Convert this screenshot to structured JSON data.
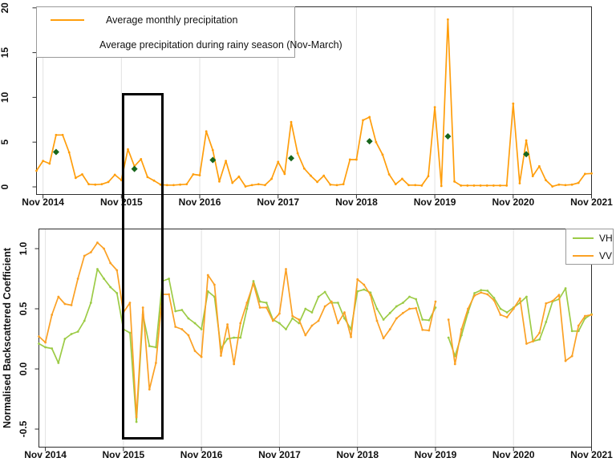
{
  "figure": {
    "description": "Two stacked time-series plots sharing a Nov 2014 - Nov 2021 monthly x-axis with a black rectangle highlighting the Nov 2015 - Apr 2016 window in both plots",
    "colors": {
      "precipitation_line": "#FF9E0C",
      "rainy_season_marker": "#17661C",
      "vh_line": "#9CCB46",
      "vv_line": "#FBA125",
      "gridline": "#E2E2E2",
      "box_border": "#2F2F2F",
      "highlight_box": "#000000",
      "text": "#111111"
    }
  },
  "top_legend": {
    "item1": "Average monthly precipitation",
    "item2": "Average precipitation during rainy season (Nov-March)"
  },
  "bottom_legend": {
    "item1": "VH",
    "item2": "VV"
  },
  "chart_data": [
    {
      "type": "line",
      "title": "",
      "xlabel": "",
      "ylabel": "",
      "x_start": "Oct 2014",
      "x_interval": "monthly",
      "x_tick_labels": [
        "Nov 2014",
        "Nov 2015",
        "Nov 2016",
        "Nov 2017",
        "Nov 2018",
        "Nov 2019",
        "Nov 2020",
        "Nov 2021"
      ],
      "x_tick_month_indices": [
        1,
        13,
        25,
        37,
        49,
        61,
        73,
        85
      ],
      "ylim": [
        0,
        20.8
      ],
      "y_ticks": [
        0,
        5,
        10,
        15,
        20
      ],
      "grid": "vertical-only",
      "legend_position": "top-left",
      "series": [
        {
          "name": "Average monthly precipitation",
          "color": "#FF9E0C",
          "values": [
            1.8,
            2.9,
            2.6,
            5.8,
            5.8,
            3.85,
            1.0,
            1.4,
            0.3,
            0.25,
            0.3,
            0.55,
            1.35,
            0.75,
            4.2,
            2.3,
            3.1,
            1.1,
            0.7,
            0.25,
            0.2,
            0.2,
            0.25,
            0.3,
            1.4,
            1.3,
            6.2,
            4.1,
            0.6,
            2.9,
            0.45,
            1.15,
            0.05,
            0.2,
            0.3,
            0.2,
            0.9,
            2.8,
            1.45,
            7.25,
            3.75,
            2.05,
            1.25,
            0.55,
            1.25,
            0.25,
            0.2,
            0.3,
            3.05,
            3.05,
            7.45,
            7.8,
            5.0,
            3.6,
            1.4,
            0.3,
            0.9,
            0.2,
            0.2,
            0.15,
            1.2,
            8.9,
            0.1,
            18.7,
            0.6,
            0.15,
            0.15,
            0.15,
            0.15,
            0.15,
            0.15,
            0.15,
            0.15,
            9.3,
            0.4,
            5.2,
            1.2,
            2.3,
            0.75,
            0.05,
            0.25,
            0.2,
            0.25,
            0.45,
            1.45,
            1.5
          ]
        }
      ],
      "rainy_season_points": {
        "name": "Average precipitation during rainy season (Nov-March)",
        "color": "#17661C",
        "months": [
          "Jan 2015",
          "Jan 2016",
          "Jan 2017",
          "Jan 2018",
          "Jan 2019",
          "Jan 2020",
          "Jan 2021"
        ],
        "month_indices": [
          3,
          15,
          27,
          39,
          51,
          63,
          75
        ],
        "values": [
          3.9,
          2.0,
          3.0,
          3.2,
          5.1,
          5.65,
          3.65
        ]
      }
    },
    {
      "type": "line",
      "title": "",
      "xlabel": "",
      "ylabel": "Normalised Backscattered Coefficient",
      "x_start": "Oct 2014",
      "x_interval": "monthly",
      "x_tick_labels": [
        "Nov 2014",
        "Nov 2015",
        "Nov 2016",
        "Nov 2017",
        "Nov 2018",
        "Nov 2019",
        "Nov 2020",
        "Nov 2021"
      ],
      "x_tick_month_indices": [
        1,
        13,
        25,
        37,
        49,
        61,
        73,
        85
      ],
      "ylim": [
        -0.65,
        1.17
      ],
      "y_ticks": [
        -0.5,
        0.0,
        0.5,
        1.0
      ],
      "y_tick_labels": [
        "-0.5",
        "0.0",
        "0.5",
        "1.0"
      ],
      "grid": "vertical-only",
      "legend_position": "top-right",
      "data_gap": "Dec 2019",
      "series": [
        {
          "name": "VH",
          "color": "#9CCB46",
          "values": [
            0.21,
            0.18,
            0.17,
            0.05,
            0.25,
            0.29,
            0.31,
            0.4,
            0.55,
            0.83,
            0.75,
            0.68,
            0.63,
            0.33,
            0.3,
            -0.44,
            0.45,
            0.19,
            0.18,
            0.73,
            0.75,
            0.48,
            0.49,
            0.42,
            0.38,
            0.33,
            0.645,
            0.6,
            0.17,
            0.25,
            0.26,
            0.26,
            0.5,
            0.73,
            0.56,
            0.55,
            0.41,
            0.38,
            0.33,
            0.42,
            0.38,
            0.5,
            0.47,
            0.6,
            0.64,
            0.55,
            0.55,
            0.42,
            0.33,
            0.645,
            0.66,
            0.635,
            0.5,
            0.41,
            0.465,
            0.52,
            0.55,
            0.6,
            0.58,
            0.41,
            0.405,
            0.51,
            null,
            0.26,
            0.107,
            0.28,
            0.47,
            0.63,
            0.655,
            0.65,
            0.59,
            0.5,
            0.47,
            0.51,
            0.55,
            0.6,
            0.23,
            0.245,
            0.39,
            0.56,
            0.58,
            0.67,
            0.315,
            0.315,
            0.42,
            0.455
          ]
        },
        {
          "name": "VV",
          "color": "#FBA125",
          "values": [
            0.27,
            0.22,
            0.45,
            0.6,
            0.54,
            0.53,
            0.75,
            0.94,
            0.97,
            1.05,
            1.0,
            0.88,
            0.82,
            0.47,
            0.55,
            -0.4,
            0.51,
            -0.17,
            0.05,
            0.62,
            0.62,
            0.35,
            0.33,
            0.28,
            0.15,
            0.1,
            0.78,
            0.7,
            0.11,
            0.37,
            0.04,
            0.38,
            0.55,
            0.71,
            0.51,
            0.51,
            0.4,
            0.46,
            0.83,
            0.44,
            0.41,
            0.28,
            0.36,
            0.4,
            0.52,
            0.56,
            0.38,
            0.47,
            0.265,
            0.745,
            0.7,
            0.615,
            0.4,
            0.255,
            0.33,
            0.42,
            0.465,
            0.5,
            0.505,
            0.325,
            0.32,
            0.56,
            null,
            0.41,
            0.04,
            0.33,
            0.5,
            0.61,
            0.635,
            0.62,
            0.57,
            0.45,
            0.43,
            0.5,
            0.585,
            0.21,
            0.23,
            0.3,
            0.545,
            0.565,
            0.615,
            0.067,
            0.107,
            0.36,
            0.44,
            0.45
          ]
        }
      ]
    }
  ],
  "highlight_box": {
    "label": "highlighted window Nov 2015 - Apr 2016",
    "x_range": [
      "Nov 2015",
      "Apr 2016"
    ]
  }
}
